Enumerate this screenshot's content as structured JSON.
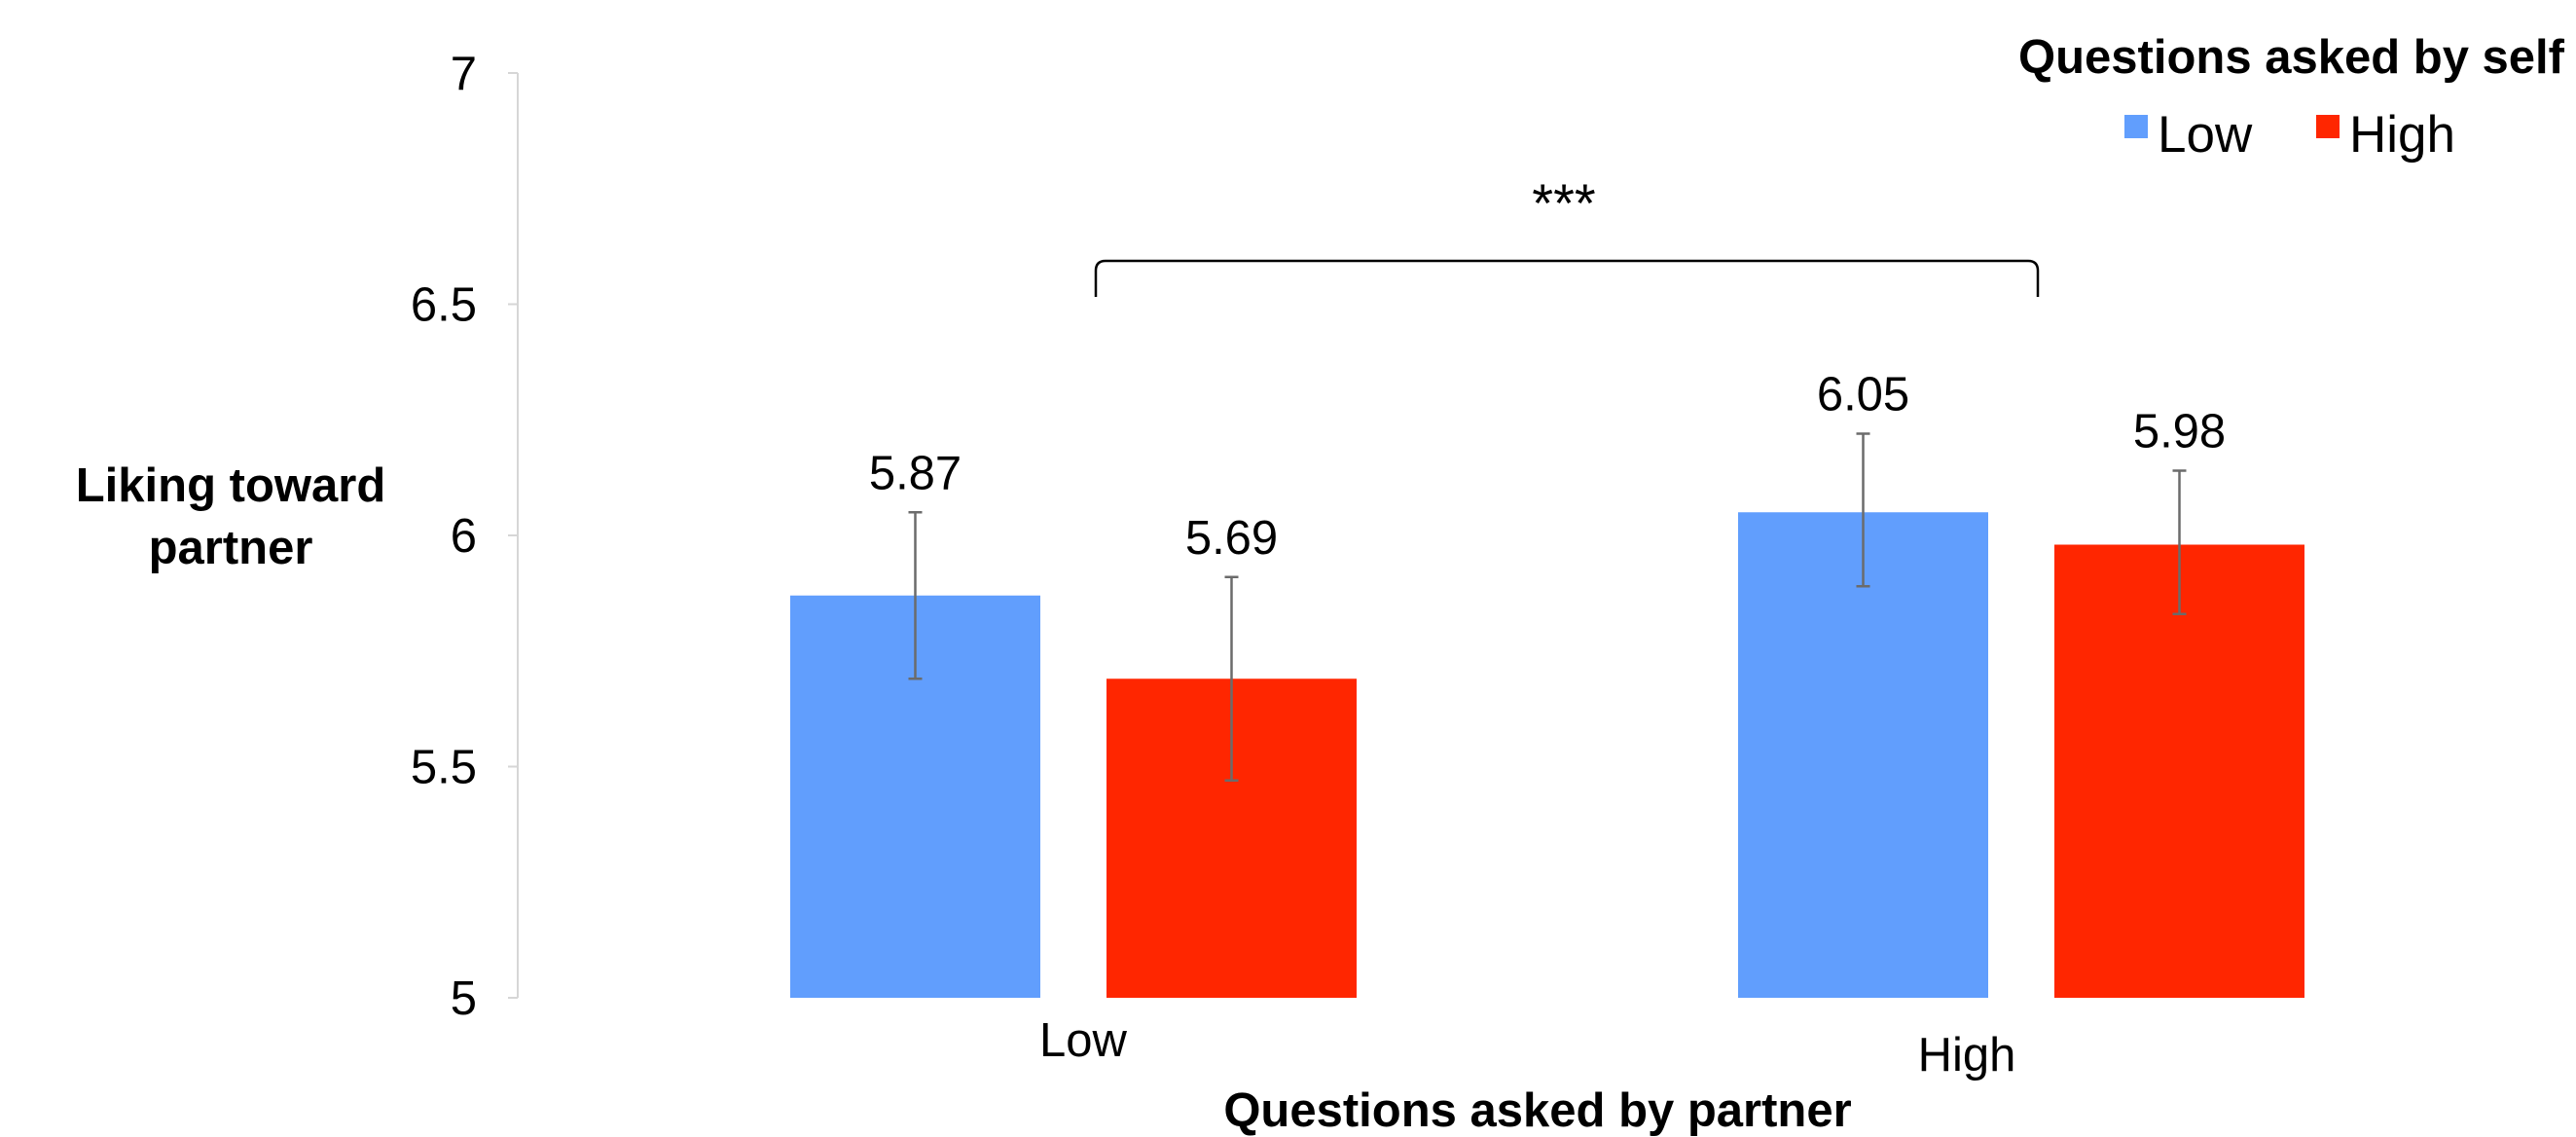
{
  "chart_data": {
    "type": "bar",
    "title": "",
    "xlabel": "Questions asked by partner",
    "ylabel_lines": [
      "Liking toward",
      "partner"
    ],
    "categories": [
      "Low",
      "High"
    ],
    "series": [
      {
        "name": "Low",
        "color": "#619EFD",
        "values": [
          5.87,
          6.05
        ],
        "labels": [
          "5.87",
          "6.05"
        ],
        "error_low": [
          5.69,
          5.89
        ],
        "error_high": [
          6.05,
          6.22
        ]
      },
      {
        "name": "High",
        "color": "#FF2600",
        "values": [
          5.69,
          5.98
        ],
        "labels": [
          "5.69",
          "5.98"
        ],
        "error_low": [
          5.47,
          5.83
        ],
        "error_high": [
          5.91,
          6.14
        ]
      }
    ],
    "ylim": [
      5,
      7
    ],
    "yticks": [
      5,
      5.5,
      6,
      6.5,
      7
    ],
    "ytick_labels": [
      "5",
      "5.5",
      "6",
      "6.5",
      "7"
    ],
    "legend": {
      "title": "Questions asked by self",
      "position": "top-right"
    },
    "annotation": {
      "text": "***",
      "type": "significance bracket",
      "between": [
        "Low",
        "High"
      ]
    },
    "grid": false
  }
}
